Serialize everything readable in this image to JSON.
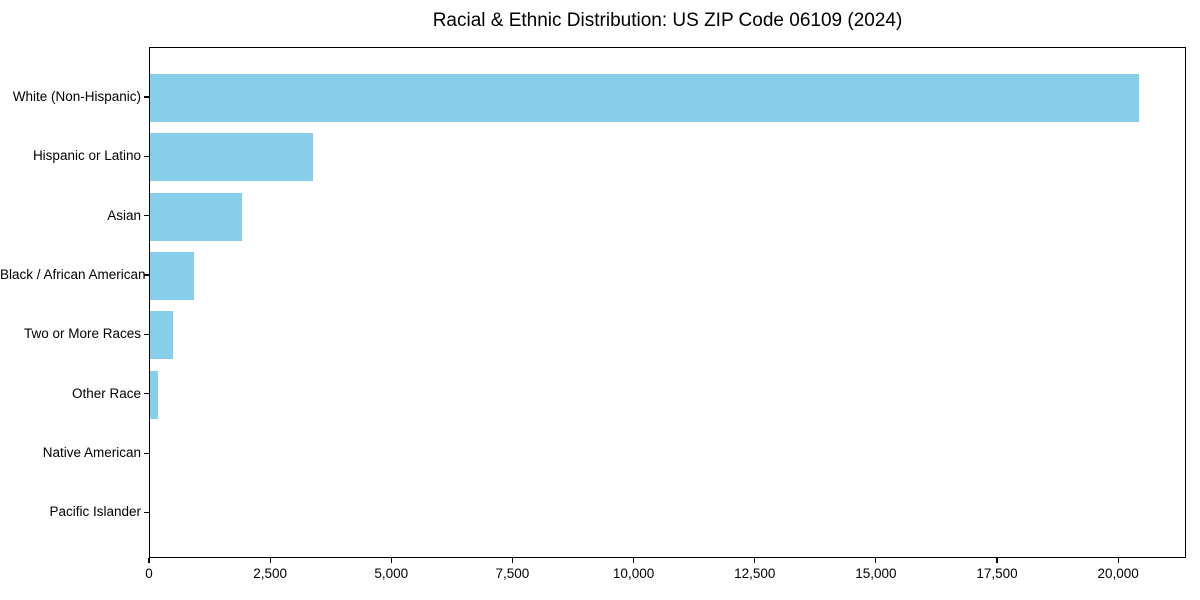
{
  "chart_data": {
    "type": "bar",
    "orientation": "horizontal",
    "title": "Racial & Ethnic Distribution: US ZIP Code 06109 (2024)",
    "categories": [
      "White (Non-Hispanic)",
      "Hispanic or Latino",
      "Asian",
      "Black / African American",
      "Two or More Races",
      "Other Race",
      "Native American",
      "Pacific Islander"
    ],
    "values": [
      20400,
      3360,
      1900,
      910,
      480,
      170,
      0,
      0
    ],
    "xlabel": "",
    "ylabel": "",
    "xlim": [
      0,
      21400
    ],
    "xticks": {
      "values": [
        0,
        2500,
        5000,
        7500,
        10000,
        12500,
        15000,
        17500,
        20000
      ],
      "labels": [
        "0",
        "2,500",
        "5,000",
        "7,500",
        "10,000",
        "12,500",
        "15,000",
        "17,500",
        "20,000"
      ]
    },
    "bar_color": "#87CEEB",
    "axis_color": "#000000",
    "background": "#FFFFFF",
    "grid": false,
    "legend": null
  }
}
